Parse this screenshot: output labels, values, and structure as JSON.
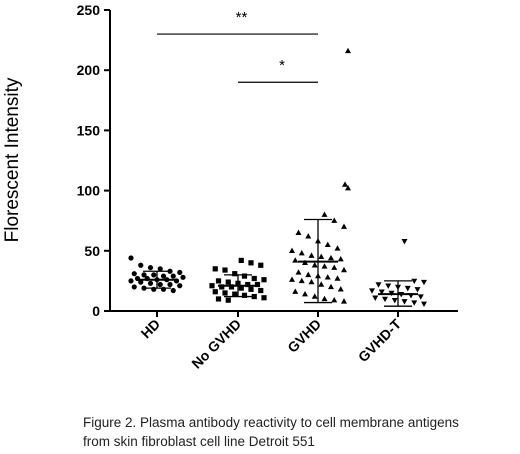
{
  "chart_data": {
    "type": "scatter",
    "ylabel": "Florescent Intensity",
    "xlabel": "",
    "ylim": [
      0,
      250
    ],
    "yticks": [
      0,
      50,
      100,
      150,
      200,
      250
    ],
    "grid": false,
    "legend": "none",
    "categories": [
      "HD",
      "No GVHD",
      "GVHD",
      "GVHD-T"
    ],
    "series": [
      {
        "category": "HD",
        "marker": "circle",
        "mean": 26,
        "sd_low": 19,
        "sd_high": 33,
        "values": [
          44,
          38,
          36,
          35,
          33,
          32,
          31,
          30,
          30,
          29,
          29,
          28,
          27,
          27,
          26,
          26,
          25,
          25,
          24,
          23,
          22,
          22,
          21,
          20,
          19,
          18,
          18,
          17
        ]
      },
      {
        "category": "No GVHD",
        "marker": "square",
        "mean": 21,
        "sd_low": 12,
        "sd_high": 30,
        "values": [
          42,
          40,
          38,
          35,
          34,
          31,
          29,
          27,
          26,
          25,
          24,
          23,
          22,
          22,
          21,
          20,
          20,
          19,
          18,
          17,
          16,
          15,
          14,
          13,
          12,
          11,
          10,
          9
        ]
      },
      {
        "category": "GVHD",
        "marker": "triangle-up",
        "mean": 41,
        "sd_low": 7,
        "sd_high": 76,
        "values": [
          216,
          105,
          102,
          80,
          75,
          70,
          65,
          62,
          58,
          55,
          52,
          50,
          48,
          46,
          45,
          44,
          43,
          42,
          40,
          38,
          37,
          36,
          34,
          32,
          30,
          29,
          28,
          27,
          26,
          25,
          24,
          22,
          20,
          18,
          16,
          14,
          12,
          10,
          9,
          8
        ]
      },
      {
        "category": "GVHD-T",
        "marker": "triangle-down",
        "mean": 14,
        "sd_low": 4,
        "sd_high": 25,
        "values": [
          58,
          25,
          24,
          22,
          21,
          20,
          19,
          18,
          17,
          16,
          15,
          14,
          13,
          12,
          11,
          10,
          9,
          8,
          7,
          6
        ]
      }
    ],
    "significance": [
      {
        "from": "HD",
        "to": "GVHD",
        "label": "**",
        "y": 230
      },
      {
        "from": "No GVHD",
        "to": "GVHD",
        "label": "*",
        "y": 190
      }
    ]
  },
  "caption": {
    "line1": "Figure 2. Plasma antibody reactivity to cell membrane antigens",
    "line2": "from skin fibroblast cell line Detroit 551"
  }
}
